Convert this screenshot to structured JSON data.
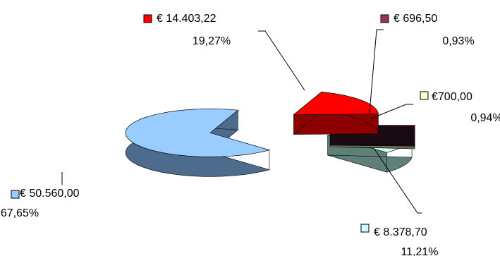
{
  "chart_data": {
    "type": "pie",
    "style": "3d-exploded",
    "slices": [
      {
        "value_label": "€ 50.560,00",
        "percent_label": "67,65%",
        "value": 50560.0,
        "percent": 67.65,
        "top_color": "#99ccff",
        "side_color": "#4d6b8c"
      },
      {
        "value_label": "€ 14.403,22",
        "percent_label": "19,27%",
        "value": 14403.22,
        "percent": 19.27,
        "top_color": "#ff0000",
        "side_color": "#8c0000"
      },
      {
        "value_label": "€ 696,50",
        "percent_label": "0,93%",
        "value": 696.5,
        "percent": 0.93,
        "top_color": "#993366",
        "side_color": "#1a0a12"
      },
      {
        "value_label": "€700,00",
        "percent_label": "0,94%",
        "value": 700.0,
        "percent": 0.94,
        "top_color": "#ffffcc",
        "side_color": "#8c8c70"
      },
      {
        "value_label": "€ 8.378,70",
        "percent_label": "11,21%",
        "value": 8378.7,
        "percent": 11.21,
        "top_color": "#ccffff",
        "side_color": "#5f8079"
      }
    ],
    "legend": "none"
  }
}
